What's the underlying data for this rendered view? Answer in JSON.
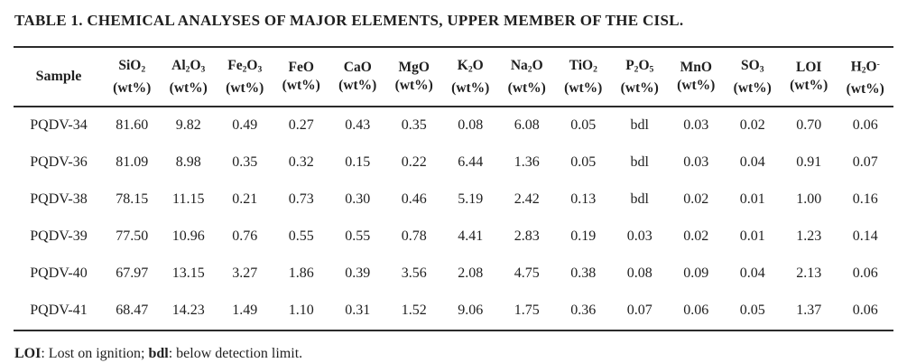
{
  "colors": {
    "background": "#ffffff",
    "text": "#1f1f1f",
    "rule": "#2b2b2b"
  },
  "title": "TABLE 1. CHEMICAL ANALYSES OF MAJOR ELEMENTS, UPPER MEMBER OF THE CISL.",
  "table": {
    "sample_header": "Sample",
    "unit_label": "(wt%)",
    "columns": [
      "SiO~2~",
      "Al~2~O~3~",
      "Fe~2~O~3~",
      "FeO",
      "CaO",
      "MgO",
      "K~2~O",
      "Na~2~O",
      "TiO~2~",
      "P~2~O~5~",
      "MnO",
      "SO~3~",
      "LOI",
      "H~2~O^-^"
    ],
    "rows": [
      {
        "sample": "PQDV-34",
        "values": [
          "81.60",
          "9.82",
          "0.49",
          "0.27",
          "0.43",
          "0.35",
          "0.08",
          "6.08",
          "0.05",
          "bdl",
          "0.03",
          "0.02",
          "0.70",
          "0.06"
        ]
      },
      {
        "sample": "PQDV-36",
        "values": [
          "81.09",
          "8.98",
          "0.35",
          "0.32",
          "0.15",
          "0.22",
          "6.44",
          "1.36",
          "0.05",
          "bdl",
          "0.03",
          "0.04",
          "0.91",
          "0.07"
        ]
      },
      {
        "sample": "PQDV-38",
        "values": [
          "78.15",
          "11.15",
          "0.21",
          "0.73",
          "0.30",
          "0.46",
          "5.19",
          "2.42",
          "0.13",
          "bdl",
          "0.02",
          "0.01",
          "1.00",
          "0.16"
        ]
      },
      {
        "sample": "PQDV-39",
        "values": [
          "77.50",
          "10.96",
          "0.76",
          "0.55",
          "0.55",
          "0.78",
          "4.41",
          "2.83",
          "0.19",
          "0.03",
          "0.02",
          "0.01",
          "1.23",
          "0.14"
        ]
      },
      {
        "sample": "PQDV-40",
        "values": [
          "67.97",
          "13.15",
          "3.27",
          "1.86",
          "0.39",
          "3.56",
          "2.08",
          "4.75",
          "0.38",
          "0.08",
          "0.09",
          "0.04",
          "2.13",
          "0.06"
        ]
      },
      {
        "sample": "PQDV-41",
        "values": [
          "68.47",
          "14.23",
          "1.49",
          "1.10",
          "0.31",
          "1.52",
          "9.06",
          "1.75",
          "0.36",
          "0.07",
          "0.06",
          "0.05",
          "1.37",
          "0.06"
        ]
      }
    ]
  },
  "footnote": {
    "segments": [
      {
        "text": "LOI",
        "bold": true
      },
      {
        "text": ": Lost on ignition; ",
        "bold": false
      },
      {
        "text": "bdl",
        "bold": true
      },
      {
        "text": ": below detection limit.",
        "bold": false
      }
    ]
  }
}
